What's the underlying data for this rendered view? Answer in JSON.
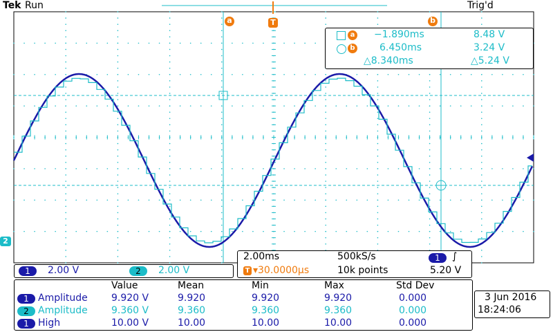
{
  "header": {
    "brand": "Tek",
    "run_state": "Run",
    "trigger_state": "Trig'd"
  },
  "cursor_labels": {
    "a": "a",
    "b": "b",
    "trigger": "T"
  },
  "cursor_readout": {
    "row_a": {
      "time": "−1.890ms",
      "volt": "8.48 V"
    },
    "row_b": {
      "time": "6.450ms",
      "volt": "3.24 V"
    },
    "delta": {
      "time": "△8.340ms",
      "volt": "△5.24 V"
    }
  },
  "channels": [
    {
      "num": "1",
      "scale": "2.00 V",
      "color": "#1a1aa8"
    },
    {
      "num": "2",
      "scale": "2.00 V",
      "color": "#1cbcc8"
    }
  ],
  "timebase": {
    "time_div": "2.00ms",
    "sample_rate": "500kS/s",
    "trigger_pos": "▾30.0000µs",
    "record_length": "10k points",
    "trigger_channel": "1",
    "trigger_level": "5.20 V"
  },
  "measurements": {
    "headers": [
      "Value",
      "Mean",
      "Min",
      "Max",
      "Std Dev"
    ],
    "rows": [
      {
        "ch": "1",
        "name": "Amplitude",
        "color": "#1a1aa8",
        "value": "9.920 V",
        "mean": "9.920",
        "min": "9.920",
        "max": "9.920",
        "std": "0.000"
      },
      {
        "ch": "2",
        "name": "Amplitude",
        "color": "#1cbcc8",
        "value": "9.360 V",
        "mean": "9.360",
        "min": "9.360",
        "max": "9.360",
        "std": "0.000"
      },
      {
        "ch": "1",
        "name": "High",
        "color": "#1a1aa8",
        "value": "10.00 V",
        "mean": "10.00",
        "min": "10.00",
        "max": "10.00",
        "std": "0.000"
      }
    ]
  },
  "datetime": {
    "date": "3 Jun 2016",
    "time": "18:24:06"
  },
  "colors": {
    "ch1": "#1a1aa8",
    "ch2": "#1cbcc8",
    "cursor": "#1cbcc8",
    "trigger": "#f07b0e",
    "grid": "#1cbcc8"
  }
}
